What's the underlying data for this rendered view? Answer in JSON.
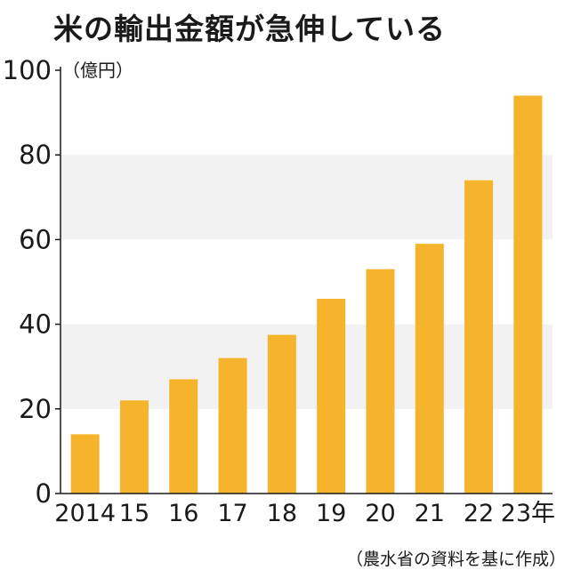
{
  "title": "米の輸出金額が急伸している",
  "source": "（農水省の資料を基に作成）",
  "colors": {
    "bar": "#F6B42C",
    "band": "#F2F2F2",
    "axis": "#1a1a1a"
  },
  "chart_data": {
    "type": "bar",
    "categories": [
      "2014",
      "15",
      "16",
      "17",
      "18",
      "19",
      "20",
      "21",
      "22",
      "23年"
    ],
    "values": [
      14,
      22,
      27,
      32,
      37.5,
      46,
      53,
      59,
      74,
      94
    ],
    "ylabel": "（億円）",
    "xlabel": "",
    "ylim": [
      0,
      100
    ],
    "yticks": [
      0,
      20,
      40,
      60,
      80,
      100
    ],
    "grid": "alternating horizontal bands"
  }
}
